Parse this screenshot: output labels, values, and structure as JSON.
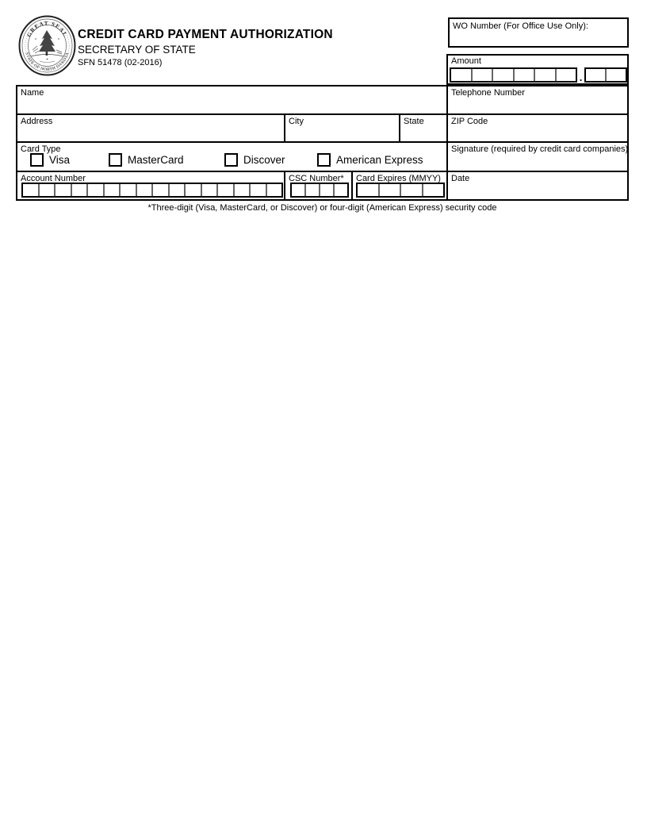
{
  "header": {
    "title": "CREDIT CARD PAYMENT AUTHORIZATION",
    "subtitle": "SECRETARY OF STATE",
    "form_number": "SFN 51478 (02-2016)"
  },
  "seal": {
    "top_text": "GREAT SEAL",
    "bottom_text": "STATE OF NORTH DAKOTA"
  },
  "office_use": {
    "wo_number_label": "WO Number (For Office Use Only):",
    "wo_number_value": ""
  },
  "amount": {
    "label": "Amount",
    "decimal_separator": ".",
    "dollar_cells": 6,
    "cent_cells": 2,
    "value": ""
  },
  "fields": {
    "name_label": "Name",
    "name_value": "",
    "telephone_label": "Telephone Number",
    "telephone_value": "",
    "address_label": "Address",
    "address_value": "",
    "city_label": "City",
    "city_value": "",
    "state_label": "State",
    "state_value": "",
    "zip_label": "ZIP Code",
    "zip_value": "",
    "card_type_label": "Card Type",
    "signature_label": "Signature (required by credit card companies)",
    "account_number_label": "Account Number",
    "account_number_value": "",
    "csc_label": "CSC Number*",
    "csc_value": "",
    "expires_label": "Card Expires (MMYY)",
    "expires_value": "",
    "date_label": "Date",
    "date_value": ""
  },
  "card_types": [
    {
      "label": "Visa",
      "checked": false
    },
    {
      "label": "MasterCard",
      "checked": false
    },
    {
      "label": "Discover",
      "checked": false
    },
    {
      "label": "American Express",
      "checked": false
    }
  ],
  "combs": {
    "account_number_cells": 16,
    "csc_cells": 4,
    "expires_cells": 4
  },
  "footnote": "*Three-digit (Visa, MasterCard, or Discover) or four-digit (American Express) security code",
  "colors": {
    "border": "#000000",
    "comb_separator": "#666666",
    "background": "#ffffff"
  }
}
